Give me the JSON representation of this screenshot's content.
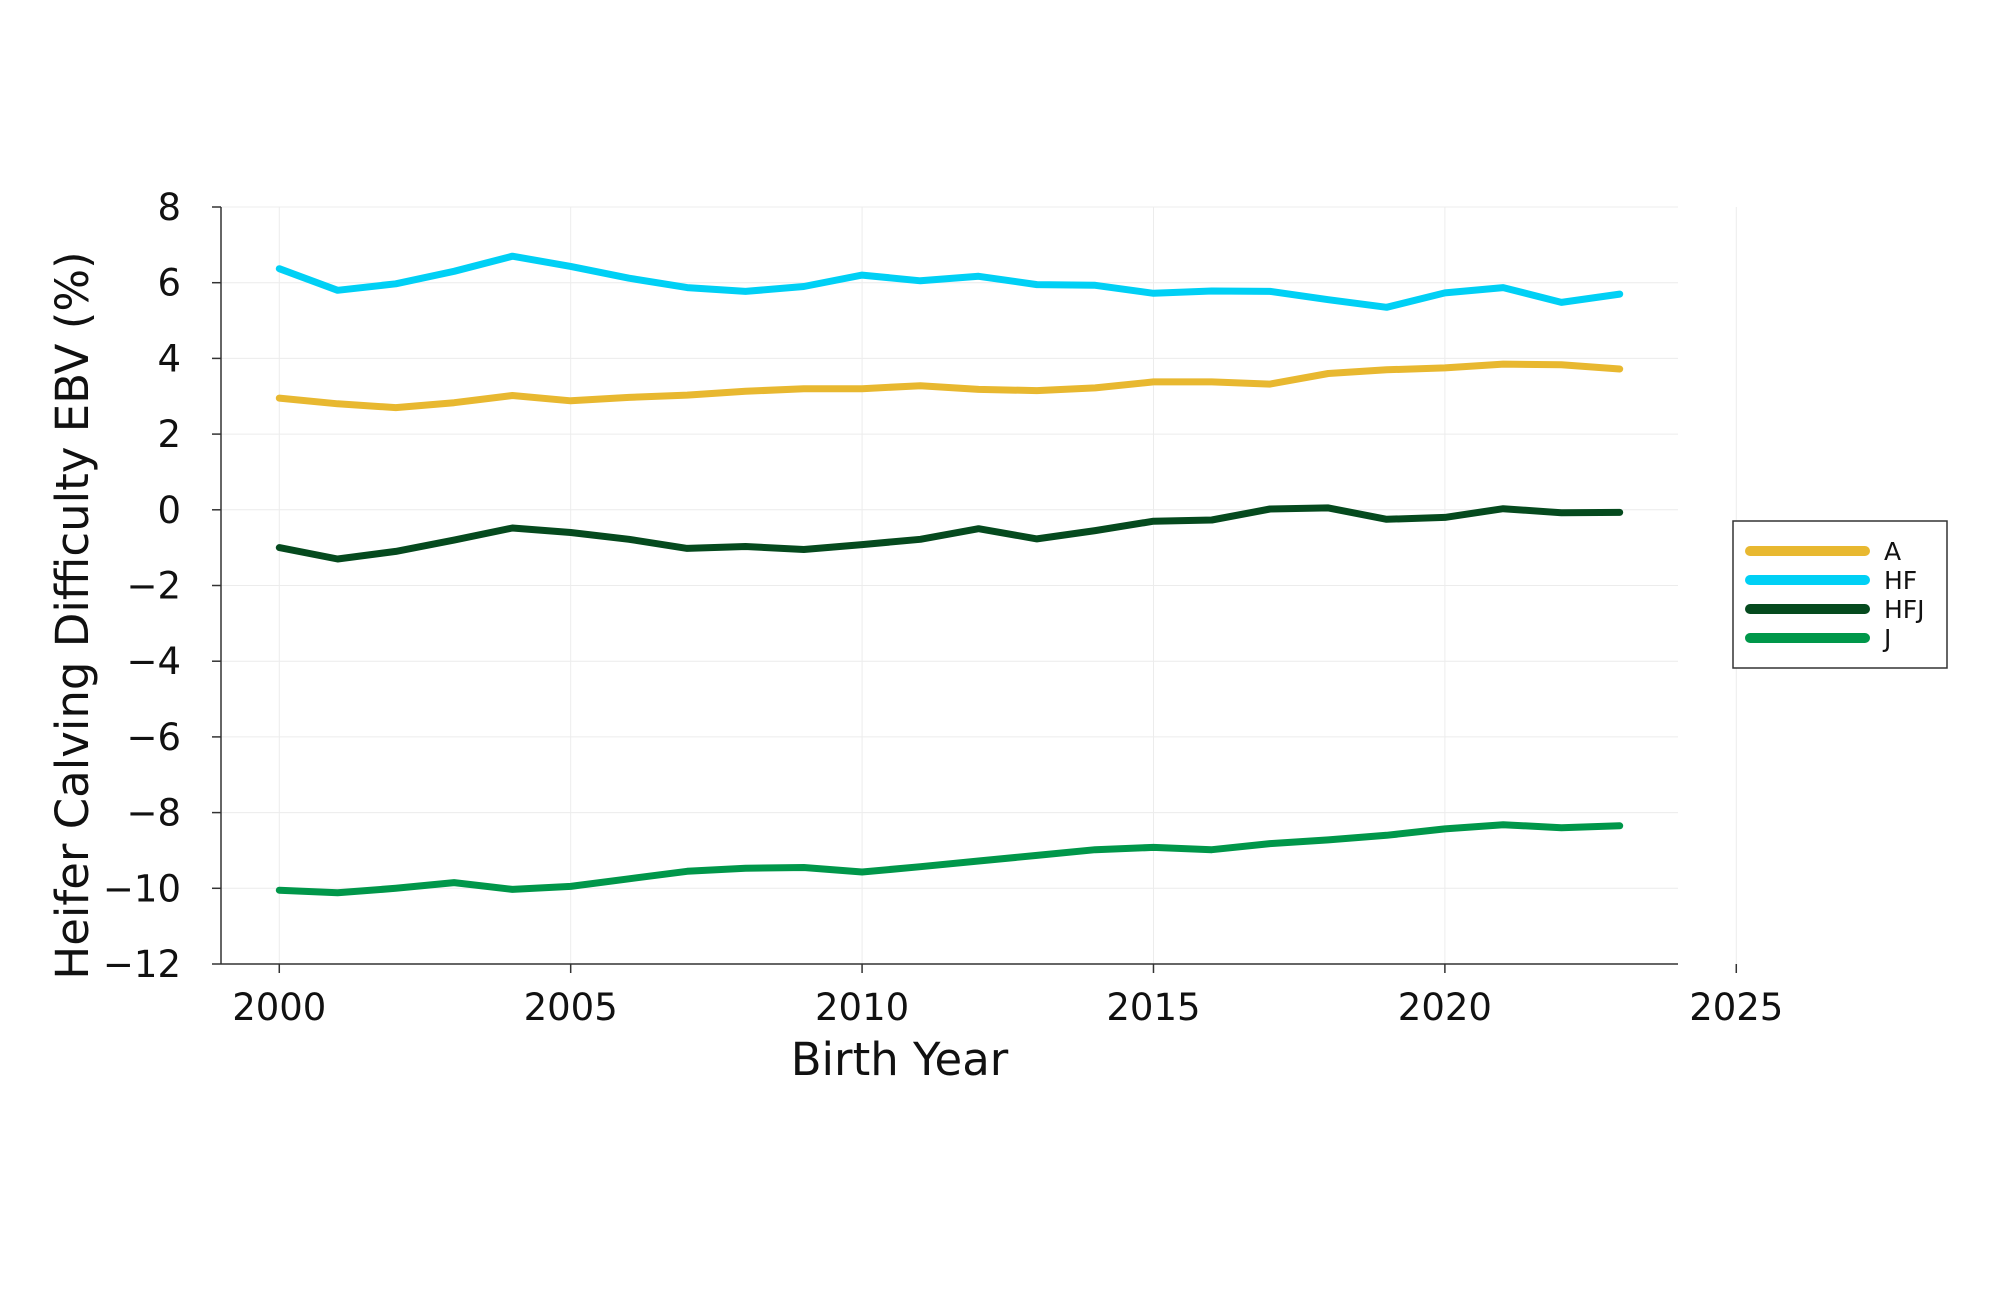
{
  "chart_data": {
    "type": "line",
    "title": "",
    "xlabel": "Birth Year",
    "ylabel": "Heifer Calving Difficulty EBV (%)",
    "xlim": [
      1999,
      2024
    ],
    "ylim": [
      -12,
      8
    ],
    "x_ticks": [
      2000,
      2005,
      2010,
      2015,
      2020,
      2025
    ],
    "y_ticks": [
      -12,
      -10,
      -8,
      -6,
      -4,
      -2,
      0,
      2,
      4,
      6,
      8
    ],
    "grid": true,
    "legend_position": "right",
    "x": [
      2000,
      2001,
      2002,
      2003,
      2004,
      2005,
      2006,
      2007,
      2008,
      2009,
      2010,
      2011,
      2012,
      2013,
      2014,
      2015,
      2016,
      2017,
      2018,
      2019,
      2020,
      2021,
      2022,
      2023
    ],
    "series": [
      {
        "name": "A",
        "color": "#E8B830",
        "values": [
          2.95,
          2.8,
          2.7,
          2.83,
          3.02,
          2.88,
          2.97,
          3.03,
          3.13,
          3.2,
          3.2,
          3.28,
          3.18,
          3.15,
          3.22,
          3.38,
          3.38,
          3.32,
          3.6,
          3.7,
          3.75,
          3.85,
          3.83,
          3.72
        ]
      },
      {
        "name": "HF",
        "color": "#00D0F5",
        "values": [
          6.37,
          5.8,
          5.97,
          6.3,
          6.7,
          6.43,
          6.12,
          5.87,
          5.77,
          5.9,
          6.2,
          6.05,
          6.17,
          5.95,
          5.93,
          5.72,
          5.78,
          5.77,
          5.55,
          5.35,
          5.73,
          5.87,
          5.48,
          5.7
        ]
      },
      {
        "name": "HFJ",
        "color": "#054A1E",
        "values": [
          -1.0,
          -1.3,
          -1.1,
          -0.8,
          -0.48,
          -0.6,
          -0.78,
          -1.02,
          -0.97,
          -1.05,
          -0.92,
          -0.78,
          -0.5,
          -0.77,
          -0.55,
          -0.3,
          -0.27,
          0.02,
          0.05,
          -0.25,
          -0.2,
          0.03,
          -0.08,
          -0.07
        ]
      },
      {
        "name": "J",
        "color": "#00974A",
        "values": [
          -10.05,
          -10.12,
          -10.0,
          -9.85,
          -10.03,
          -9.95,
          -9.75,
          -9.55,
          -9.47,
          -9.45,
          -9.57,
          -9.43,
          -9.28,
          -9.13,
          -8.98,
          -8.92,
          -8.98,
          -8.82,
          -8.72,
          -8.6,
          -8.43,
          -8.32,
          -8.4,
          -8.35
        ]
      }
    ]
  }
}
